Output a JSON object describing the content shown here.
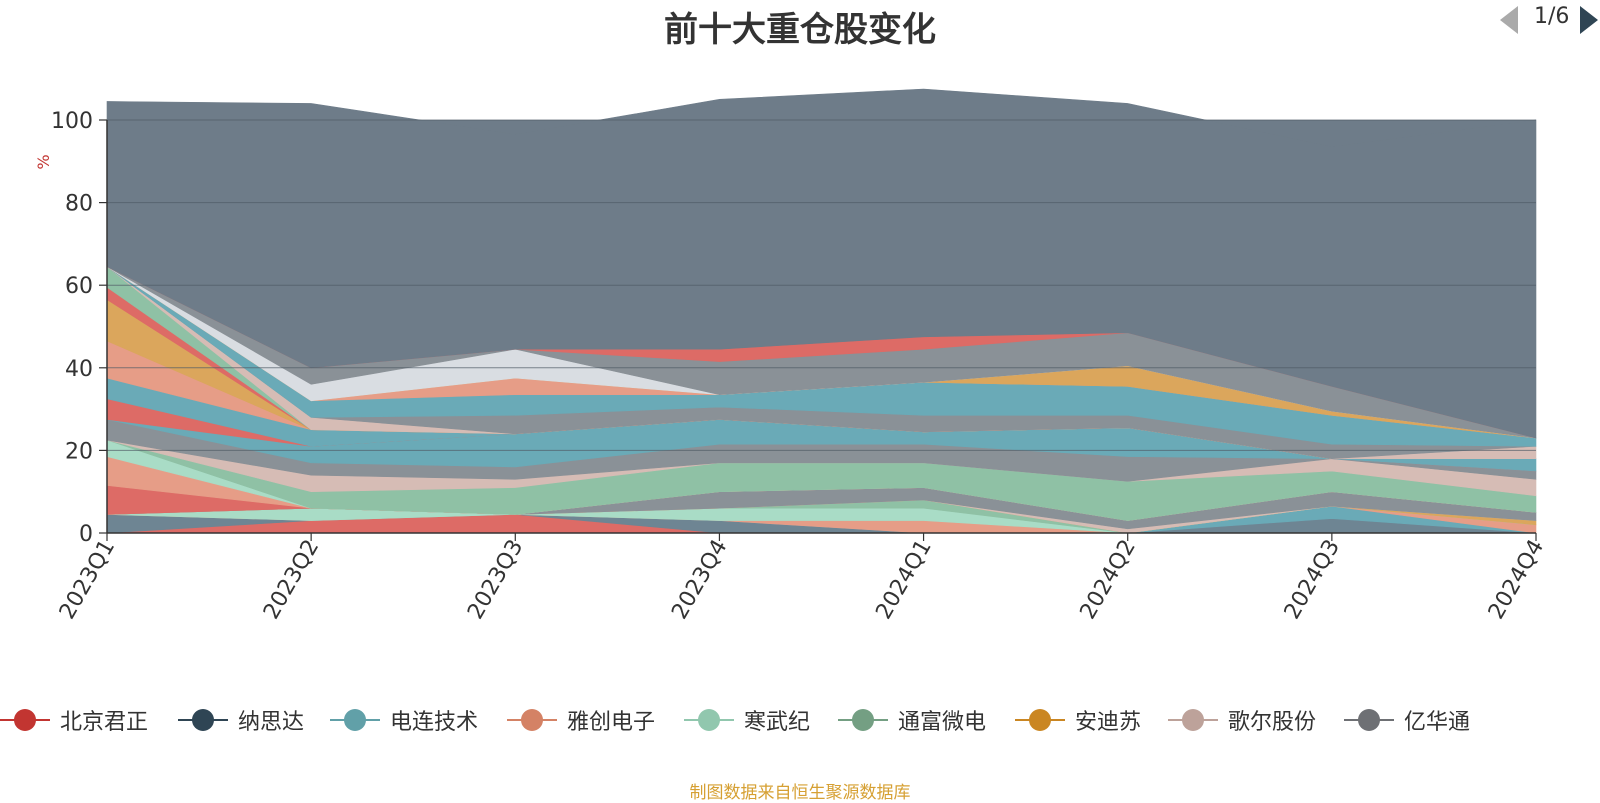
{
  "chart_data": {
    "type": "area",
    "title": "前十大重仓股变化",
    "ylabel": "%",
    "ylim": [
      0,
      100
    ],
    "yticks": [
      0,
      20,
      40,
      60,
      80,
      100
    ],
    "categories": [
      "2023Q1",
      "2023Q2",
      "2023Q3",
      "2023Q4",
      "2024Q1",
      "2024Q2",
      "2024Q3",
      "2024Q4"
    ],
    "series": [
      {
        "name": "北京君正",
        "color": "#dd6b66",
        "values": [
          0,
          3,
          4.5,
          0,
          0,
          0,
          0,
          0
        ]
      },
      {
        "name": "纳思达",
        "color": "#6e8593",
        "values": [
          4.5,
          0,
          0,
          3,
          0,
          0,
          3.5,
          0
        ]
      },
      {
        "name": "电连技术",
        "color": "#6aaab7",
        "values": [
          0,
          0,
          0,
          0,
          0,
          0,
          3,
          0
        ]
      },
      {
        "name": "雅创电子",
        "color": "#e69d87",
        "values": [
          0,
          0,
          0,
          0,
          3,
          0,
          0,
          2
        ]
      },
      {
        "name": "寒武纪",
        "color": "#a9dcc6",
        "values": [
          0,
          3,
          0,
          3,
          3,
          0,
          0,
          0
        ]
      },
      {
        "name": "通富微电",
        "color": "#8fc1a5",
        "values": [
          0,
          0,
          0,
          0,
          2,
          0,
          0,
          0
        ]
      },
      {
        "name": "安迪苏",
        "color": "#dba65c",
        "values": [
          0,
          0,
          0,
          0,
          0,
          0,
          0,
          1
        ]
      },
      {
        "name": "歌尔股份",
        "color": "#d6bcb5",
        "values": [
          0,
          0,
          0,
          0,
          0,
          1,
          0,
          0
        ]
      },
      {
        "name": "亿华通",
        "color": "#8a9197",
        "values": [
          0,
          0,
          0,
          4,
          3,
          2,
          3.5,
          2
        ]
      },
      {
        "name": "",
        "color": "#dd6b66",
        "values": [
          7,
          0,
          0,
          0,
          0,
          0,
          0,
          0
        ]
      },
      {
        "name": "",
        "color": "#e69d87",
        "values": [
          7,
          0,
          0,
          0,
          0,
          0,
          0,
          0
        ]
      },
      {
        "name": "",
        "color": "#a9dcc6",
        "values": [
          4,
          0,
          0,
          0,
          0,
          0,
          0,
          0
        ]
      },
      {
        "name": "",
        "color": "#8fc1a5",
        "values": [
          0,
          4,
          6.5,
          7,
          6,
          9.5,
          5,
          4
        ]
      },
      {
        "name": "",
        "color": "#d6bcb5",
        "values": [
          0,
          4,
          2,
          0,
          0,
          0,
          3,
          4
        ]
      },
      {
        "name": "",
        "color": "#8a9197",
        "values": [
          5,
          3,
          3,
          4.5,
          4.5,
          6,
          0,
          2
        ]
      },
      {
        "name": "",
        "color": "#6aaab7",
        "values": [
          0,
          4,
          8,
          6,
          3,
          7,
          0,
          0
        ]
      },
      {
        "name": "",
        "color": "#dd6b66",
        "values": [
          5,
          0,
          0,
          0,
          0,
          0,
          0,
          0
        ]
      },
      {
        "name": "",
        "color": "#6aaab7",
        "values": [
          5,
          4,
          0,
          0,
          0,
          0,
          0,
          3
        ]
      },
      {
        "name": "",
        "color": "#e69d87",
        "values": [
          9,
          0,
          0,
          0,
          0,
          0,
          0,
          0
        ]
      },
      {
        "name": "",
        "color": "#dba65c",
        "values": [
          10,
          0,
          0,
          0,
          0,
          0,
          0,
          0
        ]
      },
      {
        "name": "",
        "color": "#dd6b66",
        "values": [
          3,
          0,
          0,
          0,
          0,
          0,
          0,
          0
        ]
      },
      {
        "name": "",
        "color": "#8fc1a5",
        "values": [
          5,
          0,
          0,
          0,
          0,
          0,
          0,
          0
        ]
      },
      {
        "name": "",
        "color": "#d6bcb5",
        "values": [
          0,
          3,
          0,
          0,
          0,
          0,
          0,
          3
        ]
      },
      {
        "name": "",
        "color": "#8a9197",
        "values": [
          0,
          0,
          4.5,
          3,
          4,
          3,
          3.5,
          0
        ]
      },
      {
        "name": "",
        "color": "#6aaab7",
        "values": [
          0,
          4,
          5,
          3,
          8,
          7,
          7,
          2
        ]
      },
      {
        "name": "",
        "color": "#e69d87",
        "values": [
          0,
          0,
          4,
          0,
          0,
          0,
          0,
          0
        ]
      },
      {
        "name": "",
        "color": "#dba65c",
        "values": [
          0,
          0,
          0,
          0,
          0,
          5,
          1,
          0
        ]
      },
      {
        "name": "",
        "color": "#d9dde2",
        "values": [
          0,
          4,
          7,
          0,
          0,
          0,
          0,
          0
        ]
      },
      {
        "name": "",
        "color": "#8a9197",
        "values": [
          0,
          4,
          0,
          8,
          8,
          8,
          6,
          0
        ]
      },
      {
        "name": "",
        "color": "#dd6b66",
        "values": [
          0,
          0,
          0,
          3,
          3,
          0,
          0,
          0
        ]
      },
      {
        "name": "",
        "color": "#6e7c89",
        "values": [
          40,
          64,
          52,
          60.5,
          60,
          55.5,
          58,
          77
        ]
      }
    ]
  },
  "legend": {
    "items": [
      {
        "name": "北京君正",
        "color": "#c23531"
      },
      {
        "name": "纳思达",
        "color": "#2f4554"
      },
      {
        "name": "电连技术",
        "color": "#61a0a8"
      },
      {
        "name": "雅创电子",
        "color": "#d48265"
      },
      {
        "name": "寒武纪",
        "color": "#91c7ae"
      },
      {
        "name": "通富微电",
        "color": "#749f83"
      },
      {
        "name": "安迪苏",
        "color": "#ca8622"
      },
      {
        "name": "歌尔股份",
        "color": "#bda29a"
      },
      {
        "name": "亿华通",
        "color": "#6e7074"
      }
    ],
    "page_text": "1/6"
  },
  "source_note": "制图数据来自恒生聚源数据库"
}
